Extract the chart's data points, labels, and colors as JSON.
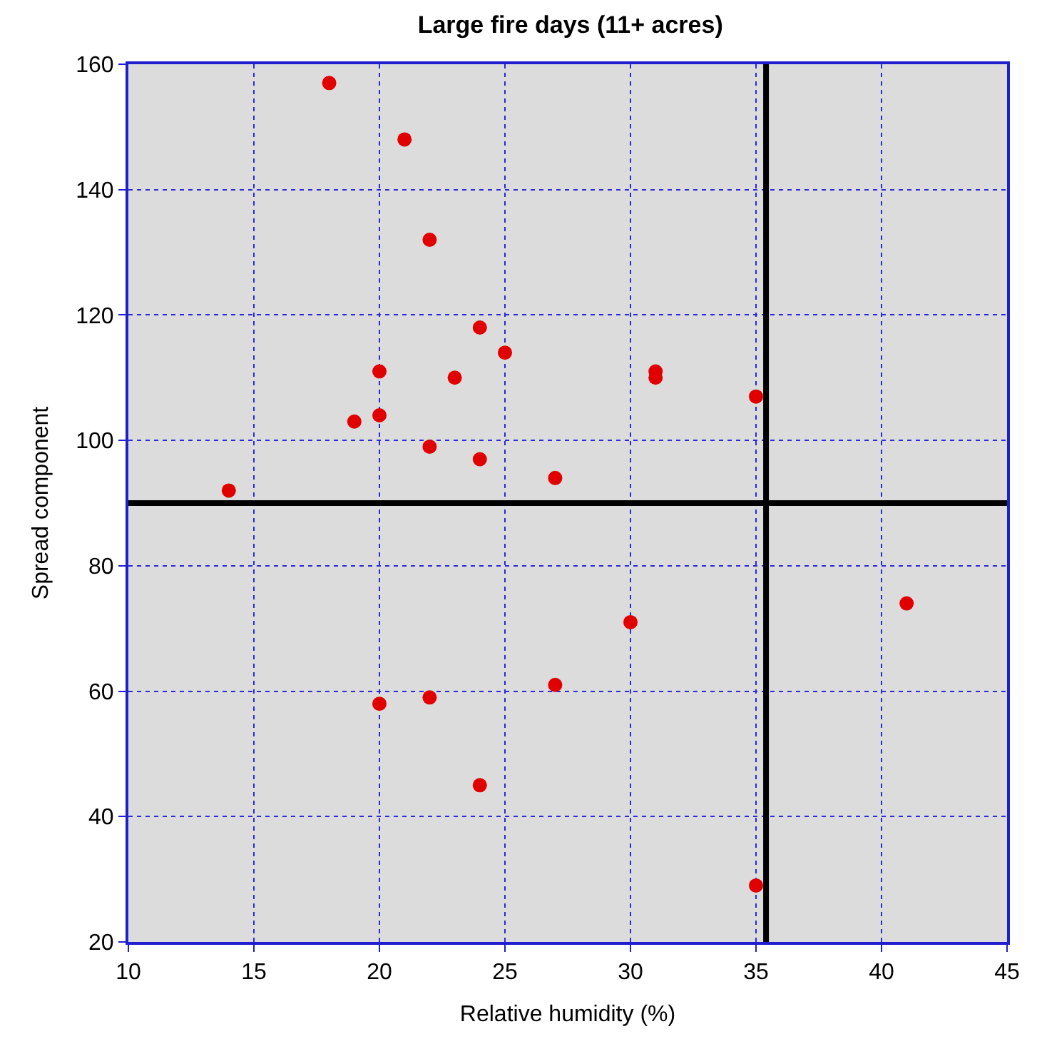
{
  "chart_data": {
    "type": "scatter",
    "title": "Large fire days (11+ acres)",
    "xlabel": "Relative humidity (%)",
    "ylabel": "Spread component",
    "x": [
      18,
      21,
      22,
      24,
      25,
      20,
      23,
      31,
      31,
      35,
      19,
      20,
      22,
      24,
      27,
      14,
      41,
      30,
      27,
      22,
      20,
      24,
      35
    ],
    "series": [
      {
        "color": "#e00000",
        "values": [
          157,
          148,
          132,
          118,
          114,
          111,
          110,
          111,
          110,
          107,
          103,
          104,
          99,
          97,
          94,
          92,
          74,
          71,
          61,
          59,
          58,
          45,
          29
        ]
      }
    ],
    "xlim": [
      10,
      45
    ],
    "xticks": [
      10,
      15,
      20,
      25,
      30,
      35,
      40,
      45
    ],
    "ylim": [
      20,
      160
    ],
    "yticks": [
      20,
      40,
      60,
      80,
      100,
      120,
      140,
      160
    ],
    "grid": true,
    "marker": "circle",
    "legend": false,
    "ref_lines": [
      {
        "axis": "x",
        "value": 35.4,
        "color": "#000000"
      },
      {
        "axis": "y",
        "value": 90,
        "color": "#000000"
      }
    ]
  }
}
